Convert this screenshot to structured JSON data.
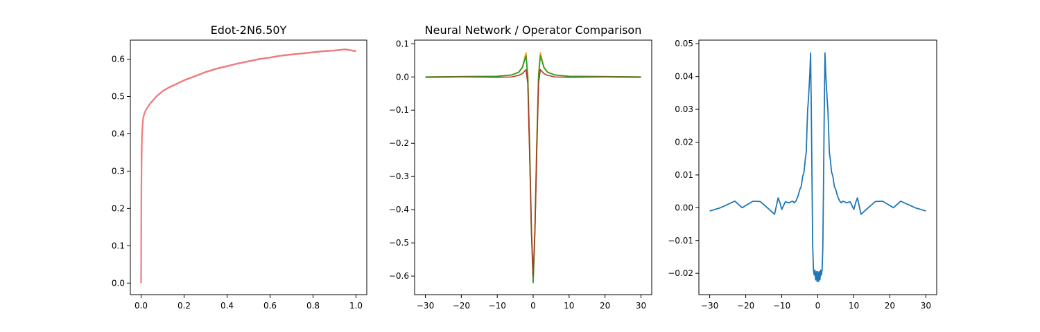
{
  "chart_data": [
    {
      "type": "line",
      "title": "Edot-2N6.50Y",
      "xlabel": "",
      "ylabel": "",
      "xlim": [
        -0.05,
        1.05
      ],
      "ylim": [
        -0.031,
        0.651
      ],
      "xticks": [
        0.0,
        0.2,
        0.4,
        0.6,
        0.8,
        1.0
      ],
      "xtick_labels": [
        "0.0",
        "0.2",
        "0.4",
        "0.6",
        "0.8",
        "1.0"
      ],
      "yticks": [
        0.0,
        0.1,
        0.2,
        0.3,
        0.4,
        0.5,
        0.6
      ],
      "ytick_labels": [
        "0.0",
        "0.1",
        "0.2",
        "0.3",
        "0.4",
        "0.5",
        "0.6"
      ],
      "grid": false,
      "series": [
        {
          "color": "#d62728",
          "width": 1.5,
          "x": [
            0,
            0.001,
            0.002,
            0.004,
            0.007,
            0.01,
            0.015,
            0.02,
            0.03,
            0.04,
            0.05,
            0.07,
            0.1,
            0.13,
            0.16,
            0.2,
            0.25,
            0.3,
            0.35,
            0.4,
            0.45,
            0.5,
            0.55,
            0.6,
            0.65,
            0.7,
            0.75,
            0.8,
            0.85,
            0.9,
            0.95,
            1.0
          ],
          "y": [
            0,
            0.33,
            0.37,
            0.405,
            0.43,
            0.445,
            0.455,
            0.462,
            0.472,
            0.48,
            0.487,
            0.5,
            0.515,
            0.525,
            0.533,
            0.544,
            0.555,
            0.566,
            0.575,
            0.582,
            0.589,
            0.595,
            0.601,
            0.605,
            0.61,
            0.613,
            0.616,
            0.619,
            0.622,
            0.624,
            0.627,
            0.622
          ]
        },
        {
          "color": "#f07f7f",
          "width": 2.2,
          "x": [
            0,
            0.001,
            0.002,
            0.004,
            0.007,
            0.01,
            0.015,
            0.02,
            0.03,
            0.04,
            0.05,
            0.07,
            0.1,
            0.13,
            0.16,
            0.2,
            0.25,
            0.3,
            0.35,
            0.4,
            0.45,
            0.5,
            0.55,
            0.6,
            0.65,
            0.7,
            0.75,
            0.8,
            0.85,
            0.9,
            0.95,
            1.0
          ],
          "y": [
            0,
            0.2,
            0.31,
            0.39,
            0.425,
            0.442,
            0.454,
            0.461,
            0.471,
            0.479,
            0.486,
            0.499,
            0.514,
            0.524,
            0.532,
            0.543,
            0.554,
            0.565,
            0.574,
            0.581,
            0.588,
            0.594,
            0.6,
            0.604,
            0.609,
            0.612,
            0.615,
            0.618,
            0.621,
            0.623,
            0.626,
            0.621
          ]
        }
      ]
    },
    {
      "type": "line",
      "title": "Neural Network / Operator Comparison",
      "xlabel": "",
      "ylabel": "",
      "xlim": [
        -33,
        33
      ],
      "ylim": [
        -0.656,
        0.111
      ],
      "xticks": [
        -30,
        -20,
        -10,
        0,
        10,
        20,
        30
      ],
      "xtick_labels": [
        "−30",
        "−20",
        "−10",
        "0",
        "10",
        "20",
        "30"
      ],
      "yticks": [
        -0.6,
        -0.5,
        -0.4,
        -0.3,
        -0.2,
        -0.1,
        0.0,
        0.1
      ],
      "ytick_labels": [
        "−0.6",
        "−0.5",
        "−0.4",
        "−0.3",
        "−0.2",
        "−0.1",
        "0.0",
        "0.1"
      ],
      "grid": false,
      "series": [
        {
          "color": "#ff9f0e",
          "width": 1.8,
          "x": [
            -30,
            -20,
            -10,
            -6,
            -4,
            -3,
            -2,
            -1.5,
            -1,
            -0.5,
            0,
            0.5,
            1,
            1.5,
            2,
            3,
            4,
            6,
            10,
            20,
            30
          ],
          "y": [
            0,
            0.001,
            0.002,
            0.006,
            0.015,
            0.03,
            0.073,
            0.01,
            -0.2,
            -0.45,
            -0.61,
            -0.45,
            -0.2,
            0.01,
            0.073,
            0.03,
            0.015,
            0.006,
            0.002,
            0.001,
            0
          ]
        },
        {
          "color": "#2ca02c",
          "width": 1.8,
          "x": [
            -30,
            -20,
            -10,
            -6,
            -4,
            -3,
            -2,
            -1.5,
            -1,
            -0.5,
            0,
            0.5,
            1,
            1.5,
            2,
            3,
            4,
            6,
            10,
            20,
            30
          ],
          "y": [
            0,
            0.001,
            0.002,
            0.006,
            0.014,
            0.028,
            0.064,
            0.0,
            -0.21,
            -0.46,
            -0.62,
            -0.46,
            -0.21,
            0.0,
            0.064,
            0.028,
            0.014,
            0.006,
            0.002,
            0.001,
            0
          ]
        },
        {
          "color": "#a83b22",
          "width": 1.6,
          "x": [
            -30,
            -20,
            -10,
            -6,
            -4,
            -3,
            -2,
            -1.5,
            -1,
            -0.5,
            0,
            0.5,
            1,
            1.5,
            2,
            3,
            4,
            6,
            10,
            20,
            30
          ],
          "y": [
            -0.001,
            0.0,
            -0.001,
            0.0,
            0.005,
            0.01,
            0.022,
            -0.02,
            -0.23,
            -0.46,
            -0.6,
            -0.46,
            -0.23,
            -0.02,
            0.022,
            0.01,
            0.005,
            0.0,
            -0.001,
            0.0,
            -0.001
          ]
        }
      ]
    },
    {
      "type": "line",
      "title": "",
      "xlabel": "",
      "ylabel": "",
      "xlim": [
        -33,
        33
      ],
      "ylim": [
        -0.0265,
        0.0511
      ],
      "xticks": [
        -30,
        -20,
        -10,
        0,
        10,
        20,
        30
      ],
      "xtick_labels": [
        "−30",
        "−20",
        "−10",
        "0",
        "10",
        "20",
        "30"
      ],
      "yticks": [
        -0.02,
        -0.01,
        0.0,
        0.01,
        0.02,
        0.03,
        0.04,
        0.05
      ],
      "ytick_labels": [
        "−0.02",
        "−0.01",
        "0.00",
        "0.01",
        "0.02",
        "0.03",
        "0.04",
        "0.05"
      ],
      "grid": false,
      "series": [
        {
          "color": "#1f77b4",
          "width": 1.8,
          "x": [
            -30,
            -27,
            -23,
            -21,
            -18,
            -16,
            -14,
            -12,
            -11,
            -10.5,
            -10,
            -9,
            -8,
            -7,
            -6.5,
            -6,
            -5.5,
            -5,
            -4.6,
            -4.2,
            -3.8,
            -3.5,
            -3.2,
            -3,
            -2.8,
            -2.6,
            -2.4,
            -2.2,
            -2,
            -1.8,
            -1.6,
            -1.4,
            -1.2,
            -1,
            -0.8,
            -0.6,
            -0.4,
            -0.2,
            0,
            0.2,
            0.4,
            0.6,
            0.8,
            1,
            1.2,
            1.4,
            1.6,
            1.8,
            2,
            2.2,
            2.4,
            2.6,
            2.8,
            3,
            3.2,
            3.5,
            3.8,
            4.2,
            4.6,
            5,
            5.5,
            6,
            6.5,
            7,
            8,
            9,
            10,
            10.5,
            11,
            12,
            14,
            16,
            18,
            21,
            23,
            27,
            30
          ],
          "y": [
            -0.001,
            0.0,
            0.002,
            0.0,
            0.002,
            0.0019,
            0.0,
            -0.002,
            0.003,
            0.0015,
            -0.0005,
            0.0018,
            0.0015,
            0.002,
            0.0015,
            0.0022,
            0.0035,
            0.0055,
            0.0065,
            0.0095,
            0.011,
            0.0145,
            0.017,
            0.024,
            0.03,
            0.033,
            0.037,
            0.041,
            0.0472,
            0.03,
            0.008,
            -0.012,
            -0.019,
            -0.0205,
            -0.019,
            -0.022,
            -0.0195,
            -0.0225,
            -0.0195,
            -0.0225,
            -0.0195,
            -0.022,
            -0.019,
            -0.0205,
            -0.019,
            -0.012,
            0.008,
            0.03,
            0.0472,
            0.041,
            0.037,
            0.033,
            0.03,
            0.024,
            0.017,
            0.0145,
            0.011,
            0.0095,
            0.0065,
            0.0055,
            0.0035,
            0.0022,
            0.0015,
            0.002,
            0.0015,
            0.0018,
            -0.0005,
            0.0015,
            0.003,
            -0.002,
            0.0,
            0.0019,
            0.002,
            0.0,
            0.002,
            0.0,
            -0.001
          ]
        }
      ]
    }
  ]
}
